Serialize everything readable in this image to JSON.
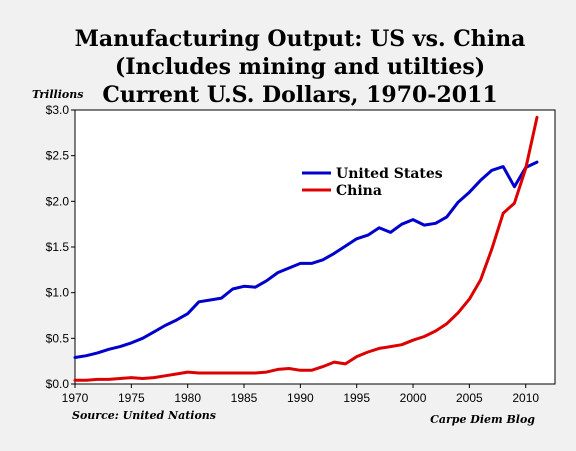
{
  "chart_data": {
    "type": "line",
    "title_lines": [
      "Manufacturing Output: US vs. China",
      "(Includes mining and utilties)",
      "Current U.S. Dollars, 1970-2011"
    ],
    "ylabel": "Trillions",
    "xlabel": "",
    "x": [
      1970,
      1971,
      1972,
      1973,
      1974,
      1975,
      1976,
      1977,
      1978,
      1979,
      1980,
      1981,
      1982,
      1983,
      1984,
      1985,
      1986,
      1987,
      1988,
      1989,
      1990,
      1991,
      1992,
      1993,
      1994,
      1995,
      1996,
      1997,
      1998,
      1999,
      2000,
      2001,
      2002,
      2003,
      2004,
      2005,
      2006,
      2007,
      2008,
      2009,
      2010,
      2011
    ],
    "series": [
      {
        "name": "United States",
        "color": "#0000cc",
        "values": [
          0.29,
          0.31,
          0.34,
          0.38,
          0.41,
          0.45,
          0.5,
          0.57,
          0.64,
          0.7,
          0.77,
          0.9,
          0.92,
          0.94,
          1.04,
          1.07,
          1.06,
          1.13,
          1.22,
          1.27,
          1.32,
          1.32,
          1.36,
          1.43,
          1.51,
          1.59,
          1.63,
          1.71,
          1.66,
          1.75,
          1.8,
          1.74,
          1.76,
          1.83,
          1.99,
          2.1,
          2.23,
          2.34,
          2.38,
          2.16,
          2.37,
          2.43
        ]
      },
      {
        "name": "China",
        "color": "#dd0000",
        "values": [
          0.04,
          0.04,
          0.05,
          0.05,
          0.06,
          0.07,
          0.06,
          0.07,
          0.09,
          0.11,
          0.13,
          0.12,
          0.12,
          0.12,
          0.12,
          0.12,
          0.12,
          0.13,
          0.16,
          0.17,
          0.15,
          0.15,
          0.19,
          0.24,
          0.22,
          0.3,
          0.35,
          0.39,
          0.41,
          0.43,
          0.48,
          0.52,
          0.58,
          0.66,
          0.78,
          0.93,
          1.14,
          1.48,
          1.87,
          1.98,
          2.36,
          2.92
        ]
      }
    ],
    "xlim": [
      1970,
      2012.6
    ],
    "ylim": [
      0,
      3.0
    ],
    "x_ticks": [
      1970,
      1975,
      1980,
      1985,
      1990,
      1995,
      2000,
      2005,
      2010
    ],
    "y_ticks": [
      0,
      0.5,
      1.0,
      1.5,
      2.0,
      2.5,
      3.0
    ],
    "x_tick_labels": [
      "1970",
      "1975",
      "1980",
      "1985",
      "1990",
      "1995",
      "2000",
      "2005",
      "2010"
    ],
    "y_tick_labels": [
      "$0.0",
      "$0.5",
      "$1.0",
      "$1.5",
      "$2.0",
      "$2.5",
      "$3.0"
    ],
    "grid": false,
    "legend_position": "upper-middle",
    "legend_entries": [
      "United States",
      "China"
    ],
    "source": "Source: United Nations",
    "credit": "Carpe Diem Blog"
  }
}
